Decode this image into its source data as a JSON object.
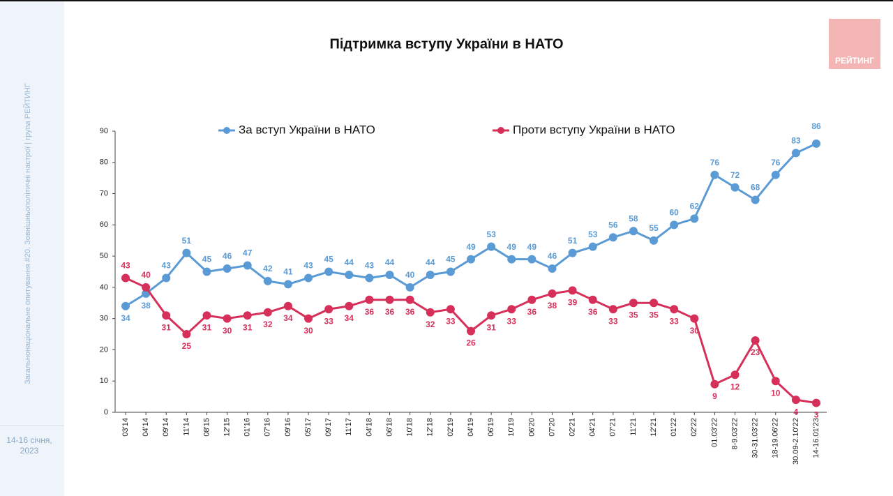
{
  "sidebar_caption": "Загальнонаціональне опитування #20. Зовнішньополітичні настрої | група РЕЙТИНГ",
  "date_note": [
    "14-16 січня,",
    "2023"
  ],
  "logo": "РЕЙТИНГ",
  "chart_data": {
    "type": "line",
    "title": "Підтримка вступу України в НАТО",
    "categories": [
      "03'14",
      "04'14",
      "09'14",
      "11'14",
      "08'15",
      "12'15",
      "01'16",
      "07'16",
      "09'16",
      "05'17",
      "09'17",
      "11'17",
      "04'18",
      "06'18",
      "10'18",
      "12'18",
      "02'19",
      "04'19",
      "06'19",
      "10'19",
      "06'20",
      "07'20",
      "02'21",
      "04'21",
      "07'21",
      "11'21",
      "12'21",
      "01'22",
      "02'22",
      "01.03'22",
      "8-9.03'22",
      "30-31.03'22",
      "18-19.06'22",
      "30.09-2.10'22",
      "14-16.01'23"
    ],
    "series": [
      {
        "name": "За вступ України в НАТО",
        "color": "#5b9bd5",
        "values": [
          34,
          38,
          43,
          51,
          45,
          46,
          47,
          42,
          41,
          43,
          45,
          44,
          43,
          44,
          40,
          44,
          45,
          49,
          53,
          49,
          49,
          46,
          51,
          53,
          56,
          58,
          55,
          60,
          62,
          76,
          72,
          68,
          76,
          83,
          86
        ]
      },
      {
        "name": "Проти вступу України в НАТО",
        "color": "#d6305a",
        "values": [
          43,
          40,
          31,
          25,
          31,
          30,
          31,
          32,
          34,
          30,
          33,
          34,
          36,
          36,
          36,
          32,
          33,
          26,
          31,
          33,
          36,
          38,
          39,
          36,
          33,
          35,
          35,
          33,
          30,
          9,
          12,
          23,
          10,
          4,
          3
        ]
      }
    ],
    "ylim": [
      0,
      90
    ],
    "yticks": [
      0,
      10,
      20,
      30,
      40,
      50,
      60,
      70,
      80,
      90
    ],
    "grid": false,
    "legend": "top"
  }
}
